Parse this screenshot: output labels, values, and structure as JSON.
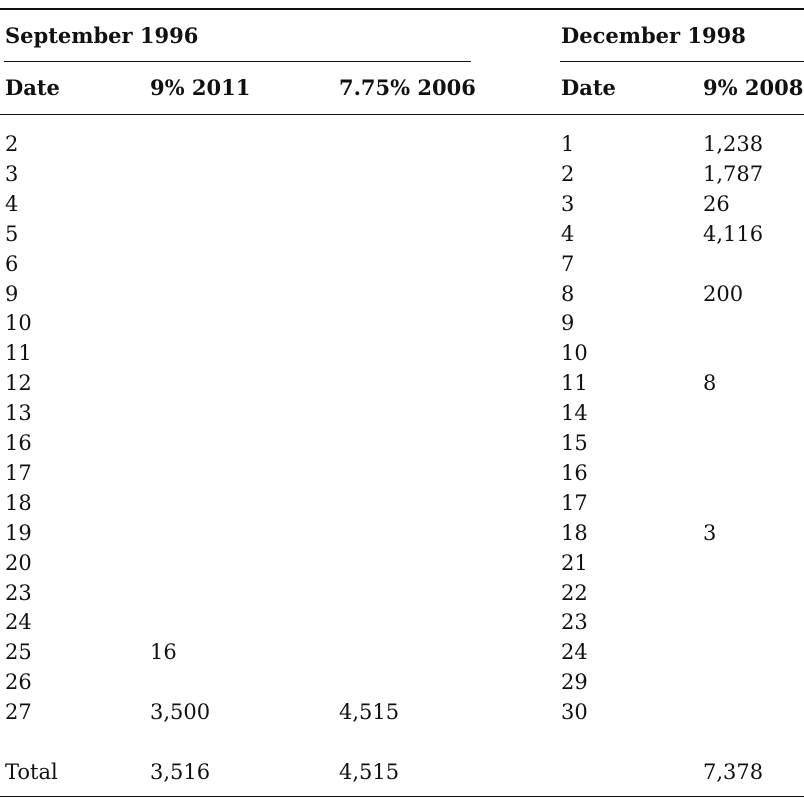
{
  "groups": {
    "left": "September 1996",
    "right": "December 1998"
  },
  "columns": [
    "Date",
    "9% 2011",
    "7.75% 2006",
    "Date",
    "9% 2008"
  ],
  "rows": [
    [
      "2",
      "",
      "",
      "1",
      "1,238"
    ],
    [
      "3",
      "",
      "",
      "2",
      "1,787"
    ],
    [
      "4",
      "",
      "",
      "3",
      "26"
    ],
    [
      "5",
      "",
      "",
      "4",
      "4,116"
    ],
    [
      "6",
      "",
      "",
      "7",
      ""
    ],
    [
      "9",
      "",
      "",
      "8",
      "200"
    ],
    [
      "10",
      "",
      "",
      "9",
      ""
    ],
    [
      "11",
      "",
      "",
      "10",
      ""
    ],
    [
      "12",
      "",
      "",
      "11",
      "8"
    ],
    [
      "13",
      "",
      "",
      "14",
      ""
    ],
    [
      "16",
      "",
      "",
      "15",
      ""
    ],
    [
      "17",
      "",
      "",
      "16",
      ""
    ],
    [
      "18",
      "",
      "",
      "17",
      ""
    ],
    [
      "19",
      "",
      "",
      "18",
      "3"
    ],
    [
      "20",
      "",
      "",
      "21",
      ""
    ],
    [
      "23",
      "",
      "",
      "22",
      ""
    ],
    [
      "24",
      "",
      "",
      "23",
      ""
    ],
    [
      "25",
      "16",
      "",
      "24",
      ""
    ],
    [
      "26",
      "",
      "",
      "29",
      ""
    ],
    [
      "27",
      "3,500",
      "4,515",
      "30",
      ""
    ]
  ],
  "total": [
    "Total",
    "3,516",
    "4,515",
    "",
    "7,378"
  ]
}
